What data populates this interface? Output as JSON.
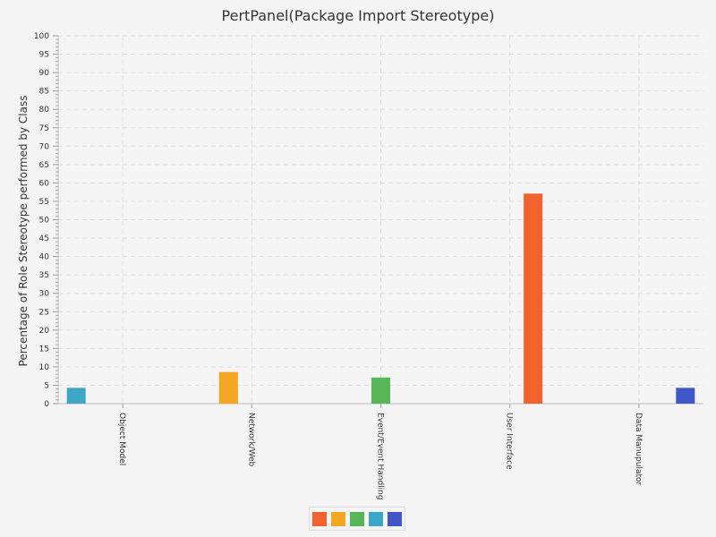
{
  "chart_data": {
    "type": "bar",
    "title": "PertPanel(Package Import Stereotype)",
    "xlabel": "",
    "ylabel": "Percentage of Role Stereotype performed by Class",
    "categories": [
      "Object Model",
      "Network/Web",
      "Event/Event Handling",
      "User Interface",
      "Data Manupulator"
    ],
    "series": [
      {
        "values": [
          4.3,
          0,
          0,
          0,
          0
        ],
        "color": "#3ea7c7"
      },
      {
        "values": [
          0,
          8.6,
          0,
          0,
          0
        ],
        "color": "#f5a623"
      },
      {
        "values": [
          0,
          0,
          7.1,
          0,
          0
        ],
        "color": "#57b757"
      },
      {
        "values": [
          0,
          0,
          0,
          57.1,
          0
        ],
        "color": "#f2622e"
      },
      {
        "values": [
          0,
          0,
          0,
          0,
          4.3
        ],
        "color": "#4157c8"
      }
    ],
    "ylim": [
      0,
      100
    ],
    "ytick_step": 5,
    "grid": true,
    "legend": {
      "position": "bottom",
      "swatches": [
        "#f2622e",
        "#f5a623",
        "#57b757",
        "#3ea7c7",
        "#4157c8"
      ]
    }
  }
}
